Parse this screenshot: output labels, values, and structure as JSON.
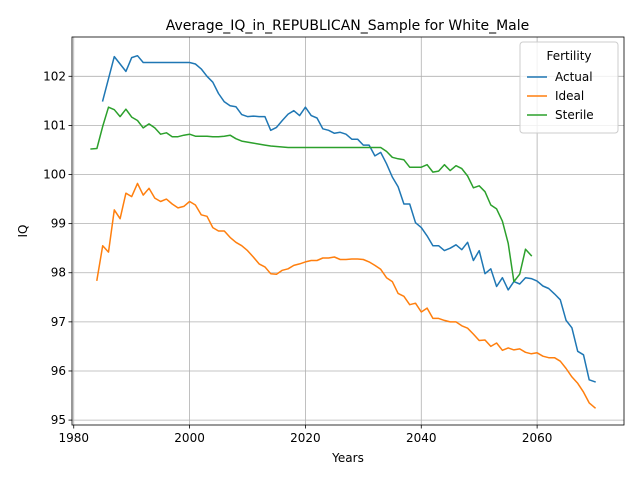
{
  "chart_data": {
    "type": "line",
    "title": "Average_IQ_in_REPUBLICAN_Sample for White_Male",
    "xlabel": "Years",
    "ylabel": "IQ",
    "xlim": [
      1979.7,
      2075
    ],
    "ylim": [
      94.9,
      102.8
    ],
    "x_ticks": [
      1980,
      2000,
      2020,
      2040,
      2060
    ],
    "y_ticks": [
      95,
      96,
      97,
      98,
      99,
      100,
      101,
      102
    ],
    "grid": true,
    "legend": {
      "title": "Fertility",
      "position": "top-right"
    },
    "series": [
      {
        "name": "Actual",
        "color": "#1f77b4",
        "x": [
          1985,
          1986,
          1987,
          1988,
          1989,
          1990,
          1991,
          1992,
          1993,
          1994,
          1995,
          1996,
          1997,
          1998,
          1999,
          2000,
          2001,
          2002,
          2003,
          2004,
          2005,
          2006,
          2007,
          2008,
          2009,
          2010,
          2011,
          2012,
          2013,
          2014,
          2015,
          2016,
          2017,
          2018,
          2019,
          2020,
          2021,
          2022,
          2023,
          2024,
          2025,
          2026,
          2027,
          2028,
          2029,
          2030,
          2031,
          2032,
          2033,
          2034,
          2035,
          2036,
          2037,
          2038,
          2039,
          2040,
          2041,
          2042,
          2043,
          2044,
          2045,
          2046,
          2047,
          2048,
          2049,
          2050,
          2051,
          2052,
          2053,
          2054,
          2055,
          2056,
          2057,
          2058,
          2059,
          2060,
          2061,
          2062,
          2063,
          2064,
          2065,
          2066,
          2067,
          2068,
          2069,
          2070
        ],
        "values": [
          101.5,
          101.95,
          102.4,
          102.25,
          102.1,
          102.38,
          102.42,
          102.28,
          102.28,
          102.28,
          102.28,
          102.28,
          102.28,
          102.28,
          102.28,
          102.28,
          102.25,
          102.15,
          102.0,
          101.88,
          101.65,
          101.48,
          101.4,
          101.38,
          101.22,
          101.18,
          101.19,
          101.18,
          101.18,
          100.9,
          100.96,
          101.1,
          101.23,
          101.3,
          101.2,
          101.37,
          101.2,
          101.15,
          100.93,
          100.9,
          100.84,
          100.86,
          100.82,
          100.72,
          100.72,
          100.6,
          100.6,
          100.38,
          100.45,
          100.22,
          99.95,
          99.75,
          99.4,
          99.4,
          99.02,
          98.92,
          98.75,
          98.55,
          98.55,
          98.45,
          98.5,
          98.57,
          98.47,
          98.62,
          98.25,
          98.45,
          97.98,
          98.08,
          97.72,
          97.9,
          97.65,
          97.82,
          97.77,
          97.9,
          97.88,
          97.83,
          97.73,
          97.68,
          97.57,
          97.45,
          97.03,
          96.88,
          96.4,
          96.33,
          95.82,
          95.78
        ]
      },
      {
        "name": "Ideal",
        "color": "#ff7f0e",
        "x": [
          1984,
          1985,
          1986,
          1987,
          1988,
          1989,
          1990,
          1991,
          1992,
          1993,
          1994,
          1995,
          1996,
          1997,
          1998,
          1999,
          2000,
          2001,
          2002,
          2003,
          2004,
          2005,
          2006,
          2007,
          2008,
          2009,
          2010,
          2011,
          2012,
          2013,
          2014,
          2015,
          2016,
          2017,
          2018,
          2019,
          2020,
          2021,
          2022,
          2023,
          2024,
          2025,
          2026,
          2027,
          2028,
          2029,
          2030,
          2031,
          2032,
          2033,
          2034,
          2035,
          2036,
          2037,
          2038,
          2039,
          2040,
          2041,
          2042,
          2043,
          2044,
          2045,
          2046,
          2047,
          2048,
          2049,
          2050,
          2051,
          2052,
          2053,
          2054,
          2055,
          2056,
          2057,
          2058,
          2059,
          2060,
          2061,
          2062,
          2063,
          2064,
          2065,
          2066,
          2067,
          2068,
          2069,
          2070
        ],
        "values": [
          97.85,
          98.55,
          98.42,
          99.28,
          99.1,
          99.62,
          99.55,
          99.82,
          99.58,
          99.72,
          99.52,
          99.45,
          99.5,
          99.4,
          99.32,
          99.35,
          99.45,
          99.38,
          99.18,
          99.15,
          98.92,
          98.85,
          98.85,
          98.72,
          98.62,
          98.55,
          98.45,
          98.32,
          98.18,
          98.12,
          97.98,
          97.97,
          98.05,
          98.08,
          98.15,
          98.18,
          98.22,
          98.25,
          98.25,
          98.3,
          98.3,
          98.32,
          98.27,
          98.27,
          98.28,
          98.28,
          98.27,
          98.22,
          98.15,
          98.07,
          97.9,
          97.82,
          97.58,
          97.52,
          97.35,
          97.38,
          97.2,
          97.28,
          97.07,
          97.07,
          97.03,
          97.0,
          97.0,
          96.92,
          96.87,
          96.75,
          96.62,
          96.63,
          96.5,
          96.57,
          96.42,
          96.47,
          96.43,
          96.45,
          96.38,
          96.35,
          96.37,
          96.3,
          96.27,
          96.27,
          96.2,
          96.05,
          95.88,
          95.75,
          95.57,
          95.35,
          95.25
        ]
      },
      {
        "name": "Sterile",
        "color": "#2ca02c",
        "x": [
          1983,
          1984,
          1985,
          1986,
          1987,
          1988,
          1989,
          1990,
          1991,
          1992,
          1993,
          1994,
          1995,
          1996,
          1997,
          1998,
          1999,
          2000,
          2001,
          2002,
          2003,
          2004,
          2005,
          2006,
          2007,
          2008,
          2009,
          2010,
          2011,
          2012,
          2013,
          2014,
          2015,
          2016,
          2017,
          2018,
          2019,
          2020,
          2021,
          2022,
          2023,
          2024,
          2025,
          2026,
          2027,
          2028,
          2029,
          2030,
          2031,
          2032,
          2033,
          2034,
          2035,
          2036,
          2037,
          2038,
          2039,
          2040,
          2041,
          2042,
          2043,
          2044,
          2045,
          2046,
          2047,
          2048,
          2049,
          2050,
          2051,
          2052,
          2053,
          2054,
          2055,
          2056,
          2057,
          2058,
          2059
        ],
        "values": [
          100.52,
          100.53,
          100.98,
          101.37,
          101.32,
          101.18,
          101.33,
          101.17,
          101.1,
          100.95,
          101.03,
          100.95,
          100.82,
          100.85,
          100.77,
          100.77,
          100.8,
          100.82,
          100.78,
          100.78,
          100.78,
          100.77,
          100.77,
          100.78,
          100.8,
          100.73,
          100.68,
          100.66,
          100.64,
          100.62,
          100.6,
          100.58,
          100.57,
          100.56,
          100.55,
          100.55,
          100.55,
          100.55,
          100.55,
          100.55,
          100.55,
          100.55,
          100.55,
          100.55,
          100.55,
          100.55,
          100.55,
          100.55,
          100.55,
          100.55,
          100.55,
          100.47,
          100.35,
          100.32,
          100.3,
          100.15,
          100.15,
          100.15,
          100.2,
          100.05,
          100.07,
          100.2,
          100.08,
          100.18,
          100.12,
          99.97,
          99.73,
          99.77,
          99.65,
          99.38,
          99.3,
          99.05,
          98.6,
          97.82,
          97.97,
          98.48,
          98.35
        ]
      }
    ]
  }
}
